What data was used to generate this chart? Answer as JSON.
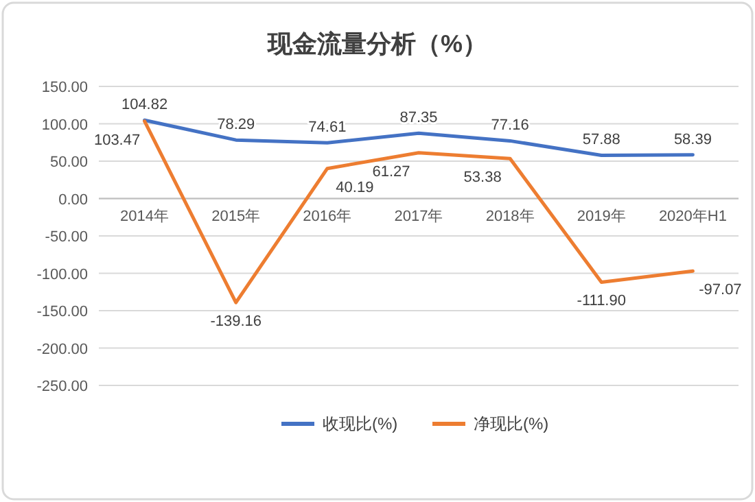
{
  "chart_data": {
    "type": "line",
    "title": "现金流量分析（%）",
    "categories": [
      "2014年",
      "2015年",
      "2016年",
      "2017年",
      "2018年",
      "2019年",
      "2020年H1"
    ],
    "series": [
      {
        "name": "收现比(%)",
        "color": "#4472c4",
        "values": [
          104.82,
          78.29,
          74.61,
          87.35,
          77.16,
          57.88,
          58.39
        ],
        "value_labels": [
          "104.82",
          "78.29",
          "74.61",
          "87.35",
          "77.16",
          "57.88",
          "58.39"
        ]
      },
      {
        "name": "净现比(%)",
        "color": "#ed7d31",
        "values": [
          103.47,
          -139.16,
          40.19,
          61.27,
          53.38,
          -111.9,
          -97.07
        ],
        "value_labels": [
          "103.47",
          "-139.16",
          "40.19",
          "61.27",
          "53.38",
          "-111.90",
          "-97.07"
        ]
      }
    ],
    "ylim": [
      -250,
      150
    ],
    "yticks": [
      {
        "value": 150,
        "label": "150.00"
      },
      {
        "value": 100,
        "label": "100.00"
      },
      {
        "value": 50,
        "label": "50.00"
      },
      {
        "value": 0,
        "label": "0.00"
      },
      {
        "value": -50,
        "label": "-50.00"
      },
      {
        "value": -100,
        "label": "-100.00"
      },
      {
        "value": -150,
        "label": "-150.00"
      },
      {
        "value": -200,
        "label": "-200.00"
      },
      {
        "value": -250,
        "label": "-250.00"
      }
    ],
    "grid": "y",
    "legend": "bottom",
    "marker": "none",
    "line_style": "solid"
  }
}
